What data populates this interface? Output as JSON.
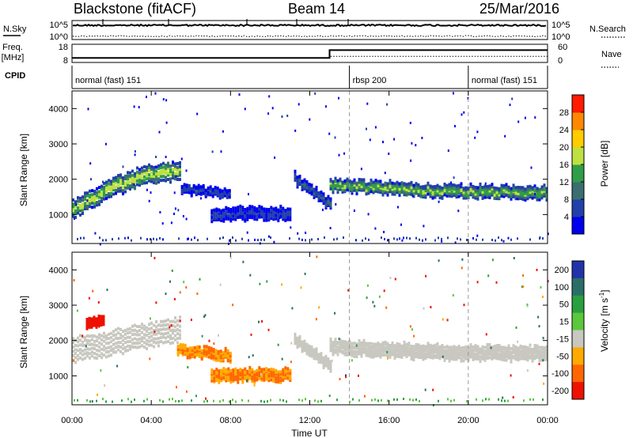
{
  "header": {
    "station": "Blackstone (fitACF)",
    "beam": "Beam 14",
    "date": "25/Mar/2016"
  },
  "chart_data": [
    {
      "type": "line",
      "panel": "sky-search-noise",
      "left_label": "N.Sky",
      "right_label": "N.Search",
      "left_ticks": [
        "10^5",
        "10^0"
      ],
      "right_ticks": [
        "10^5",
        "10^0"
      ],
      "log_scale": true,
      "series": [
        {
          "name": "N.Sky",
          "style": "solid"
        },
        {
          "name": "N.Search",
          "style": "dotted"
        }
      ]
    },
    {
      "type": "line",
      "panel": "frequency-nave",
      "left_label_lines": [
        "Freq.",
        "[MHz]"
      ],
      "left_ticks": [
        "18",
        "8"
      ],
      "left_range": [
        8,
        18
      ],
      "right_label": "Nave",
      "right_ticks": [
        "60",
        "0"
      ],
      "right_range": [
        0,
        60
      ],
      "series": [
        {
          "name": "Freq.",
          "style": "solid",
          "x_hours": [
            0,
            13,
            13,
            24
          ],
          "y": [
            10.5,
            10.5,
            14.8,
            14.8
          ]
        },
        {
          "name": "Nave",
          "style": "dotted",
          "x_hours": [
            0,
            13,
            13,
            24
          ],
          "y": [
            14,
            14,
            20,
            20
          ]
        }
      ]
    },
    {
      "type": "table",
      "panel": "cpid",
      "label": "CPID",
      "segments": [
        {
          "name": "normal (fast) 151",
          "start_hours": 0,
          "end_hours": 14
        },
        {
          "name": "rbsp 200",
          "start_hours": 14,
          "end_hours": 20
        },
        {
          "name": "normal (fast) 151",
          "start_hours": 20,
          "end_hours": 24
        }
      ]
    },
    {
      "type": "heatmap",
      "panel": "power",
      "ylabel": "Slant Range [km]",
      "yticks": [
        1000,
        2000,
        3000,
        4000
      ],
      "ylim": [
        180,
        4500
      ],
      "xlim_hours": [
        0,
        24
      ],
      "colorbar": {
        "label": "Power [dB]",
        "ticks": [
          4,
          8,
          12,
          16,
          20,
          24,
          28
        ],
        "range": [
          0,
          32
        ],
        "colors": [
          "#0000ee",
          "#2240aa",
          "#3a6e70",
          "#2f9e48",
          "#bfe040",
          "#ffcc00",
          "#ff8800",
          "#ff1a00"
        ]
      },
      "echo_bands": [
        {
          "start_h": 0.0,
          "end_h": 5.5,
          "center_km": [
            1100,
            1700,
            2100,
            2200
          ],
          "width_km": 450,
          "level_db": 20
        },
        {
          "start_h": 5.5,
          "end_h": 8.0,
          "center_km": [
            1700,
            1550
          ],
          "width_km": 200,
          "level_db": 7
        },
        {
          "start_h": 7.0,
          "end_h": 11.0,
          "center_km": [
            1000,
            1000
          ],
          "width_km": 300,
          "level_db": 6
        },
        {
          "start_h": 11.2,
          "end_h": 13.0,
          "center_km": [
            2000,
            1250
          ],
          "width_km": 250,
          "level_db": 10
        },
        {
          "start_h": 13.0,
          "end_h": 24.0,
          "center_km": [
            1800,
            1650,
            1600
          ],
          "width_km": 300,
          "level_db": 18
        }
      ]
    },
    {
      "type": "heatmap",
      "panel": "velocity",
      "xlabel": "Time UT",
      "ylabel": "Slant Range [km]",
      "xticks": [
        "00:00",
        "04:00",
        "08:00",
        "12:00",
        "16:00",
        "20:00",
        "00:00"
      ],
      "yticks": [
        1000,
        2000,
        3000,
        4000
      ],
      "ylim": [
        180,
        4500
      ],
      "xlim_hours": [
        0,
        24
      ],
      "colorbar": {
        "label": "Velocity",
        "unit_base": "[m s",
        "unit_exp": "-1",
        "unit_close": "]",
        "ticks": [
          200,
          100,
          50,
          15,
          -15,
          -50,
          -100,
          -200
        ],
        "colors": [
          "#2233aa",
          "#2b6e68",
          "#29a040",
          "#5ac83a",
          "#c8c8c0",
          "#ffaa00",
          "#ff6600",
          "#ee1100"
        ]
      },
      "echo_bands": [
        {
          "start_h": 0.0,
          "end_h": 5.5,
          "center_km": [
            1700,
            2300
          ],
          "width_km": 600,
          "velocity": 0
        },
        {
          "start_h": 0.7,
          "end_h": 1.6,
          "center_km": [
            2500,
            2500
          ],
          "width_km": 250,
          "velocity": -200
        },
        {
          "start_h": 5.3,
          "end_h": 8.0,
          "center_km": [
            1700,
            1550
          ],
          "width_km": 250,
          "velocity": -50
        },
        {
          "start_h": 7.0,
          "end_h": 11.0,
          "center_km": [
            1000,
            1000
          ],
          "width_km": 300,
          "velocity": -50
        },
        {
          "start_h": 11.2,
          "end_h": 13.0,
          "center_km": [
            2000,
            1250
          ],
          "width_km": 250,
          "velocity": 0
        },
        {
          "start_h": 13.0,
          "end_h": 24.0,
          "center_km": [
            1800,
            1650,
            1600
          ],
          "width_km": 350,
          "velocity": 0
        }
      ]
    }
  ]
}
